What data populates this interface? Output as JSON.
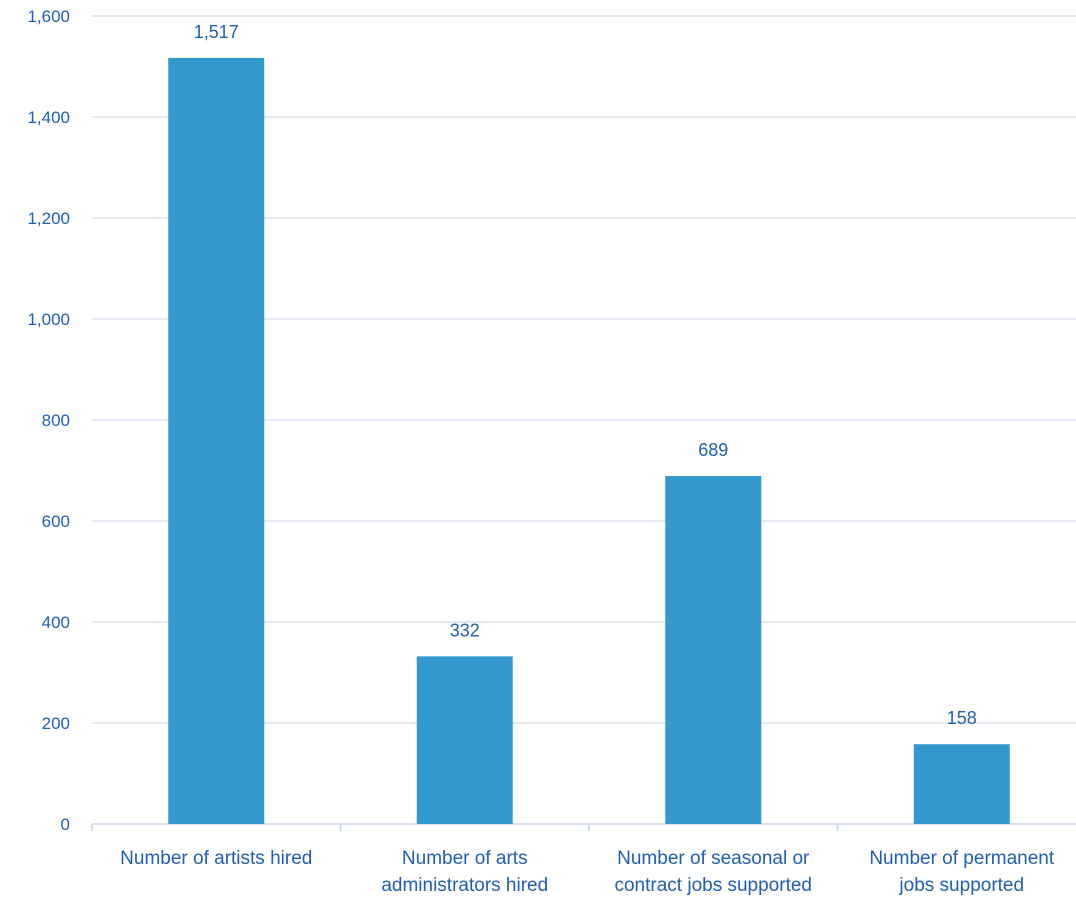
{
  "chart_data": {
    "type": "bar",
    "title": "",
    "xlabel": "",
    "ylabel": "",
    "categories": [
      "Number of artists hired",
      "Number of arts administrators hired",
      "Number of seasonal or contract jobs supported",
      "Number of permanent jobs supported"
    ],
    "category_lines": [
      [
        "Number of artists hired"
      ],
      [
        "Number of arts",
        "administrators hired"
      ],
      [
        "Number of seasonal or",
        "contract jobs supported"
      ],
      [
        "Number of permanent",
        "jobs supported"
      ]
    ],
    "values": [
      1517,
      332,
      689,
      158
    ],
    "value_labels": [
      "1,517",
      "332",
      "689",
      "158"
    ],
    "ylim": [
      0,
      1600
    ],
    "yticks": [
      0,
      200,
      400,
      600,
      800,
      1000,
      1200,
      1400,
      1600
    ],
    "ytick_labels": [
      "0",
      "200",
      "400",
      "600",
      "800",
      "1,000",
      "1,200",
      "1,400",
      "1,600"
    ],
    "grid": true,
    "legend": "none",
    "colors": {
      "bar": "#3399CC",
      "grid": "#C5D3E8",
      "text": "#1F5FB5",
      "axis": "#C5D3E8"
    }
  }
}
